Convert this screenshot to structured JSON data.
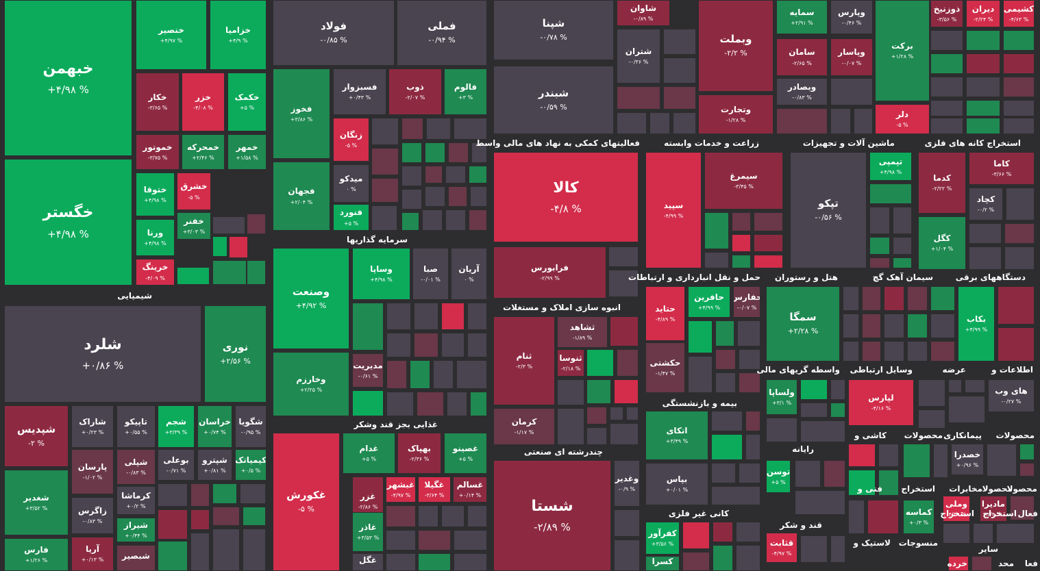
{
  "colors": {
    "g1": "#0cab5c",
    "g2": "#1f8a52",
    "g3": "#2e6a47",
    "n": "#4a4450",
    "r3": "#6a3848",
    "r2": "#8d2a41",
    "r1": "#d32d4b"
  },
  "sections": [
    {
      "label": "شیمیایی"
    },
    {
      "label": "سرمایه گذاریها"
    },
    {
      "label": "غذایی بجز قند وشکر"
    },
    {
      "label": "فعالیتهای کمکی به نهاد های مالی واسط"
    },
    {
      "label": "انبوه سازی املاک و مستغلات"
    },
    {
      "label": "چندرشته ای صنعتی"
    },
    {
      "label": "زراعت و خدمات وابسته"
    },
    {
      "label": "حمل و نقل انبارداری و ارتباطات"
    },
    {
      "label": "بیمه و بازنشستگی"
    },
    {
      "label": "کانی غیر فلزی"
    },
    {
      "label": "ماشین آلات و تجهیزات"
    },
    {
      "label": "هتل و رستوران"
    },
    {
      "label": "وسایل ارتباطی"
    },
    {
      "label": "واسطه گریهای مالی"
    },
    {
      "label": "رایانه"
    },
    {
      "label": "قند و شکر"
    },
    {
      "label": "استخراج کانه های فلزی"
    },
    {
      "label": "سیمان آهک گچ"
    },
    {
      "label": "دستگاههای برقی"
    },
    {
      "label": "اطلاعات و"
    },
    {
      "label": "عرضه"
    },
    {
      "label": "محصولات"
    },
    {
      "label": "پیمانکاری"
    },
    {
      "label": "محصولات"
    },
    {
      "label": "کاشی و"
    },
    {
      "label": "محصولا"
    },
    {
      "label": "محصولا"
    },
    {
      "label": "مخابرات"
    },
    {
      "label": "استخراج"
    },
    {
      "label": "فنی و"
    },
    {
      "label": "فعال"
    },
    {
      "label": "استخراج"
    },
    {
      "label": "استخراج"
    },
    {
      "label": "منسوجات"
    },
    {
      "label": "لاستیک و"
    },
    {
      "label": "فعا"
    },
    {
      "label": "محد"
    },
    {
      "label": "سایر"
    },
    {
      "label": "خرده"
    }
  ],
  "tiles": [
    {
      "name": "خبهمن",
      "pct": "+۴/۹۸ %"
    },
    {
      "name": "خگستر",
      "pct": "+۴/۹۸ %"
    },
    {
      "name": "خنصیر",
      "pct": "+۴/۹۷ %"
    },
    {
      "name": "خزامیا",
      "pct": "+۴/۹ %"
    },
    {
      "name": "خکار",
      "pct": "-۳/۶۵ %"
    },
    {
      "name": "خزر",
      "pct": "-۴/۰۸ %"
    },
    {
      "name": "خکمک",
      "pct": "+۵ %"
    },
    {
      "name": "خموتور",
      "pct": "-۳/۷۵ %"
    },
    {
      "name": "خمحرکه",
      "pct": "+۲/۴۶ %"
    },
    {
      "name": "خمهر",
      "pct": "+۱/۵۸ %"
    },
    {
      "name": "ختوقا",
      "pct": "+۴/۹۸ %"
    },
    {
      "name": "خشرق",
      "pct": "-۵ %"
    },
    {
      "name": "خفنر",
      "pct": "+۳/۰۳ %"
    },
    {
      "name": "ورنا",
      "pct": "+۴/۹۸ %"
    },
    {
      "name": "خرینگ",
      "pct": "-۴/۰۹ %"
    },
    {
      "name": "شلرد",
      "pct": "+۰/۸۶ %"
    },
    {
      "name": "نوری",
      "pct": "+۲/۵۶ %"
    },
    {
      "name": "شپدیس",
      "pct": "-۲ %"
    },
    {
      "name": "شاراک",
      "pct": "+۰/۲۳ %"
    },
    {
      "name": "تاپیکو",
      "pct": "+۰/۵۵ %"
    },
    {
      "name": "شجم",
      "pct": "+۳/۳۹ %"
    },
    {
      "name": "خراسان",
      "pct": "+۰/۷۴ %"
    },
    {
      "name": "شگویا",
      "pct": "-۰/۹۵ %"
    },
    {
      "name": "شغدیر",
      "pct": "+۳/۵۲ %"
    },
    {
      "name": "پارسان",
      "pct": "-۱/۰۲ %"
    },
    {
      "name": "شپلی",
      "pct": "-۰/۸۳ %"
    },
    {
      "name": "بوعلی",
      "pct": "-۰/۷۱ %"
    },
    {
      "name": "شپترو",
      "pct": "+۰/۸۱ %"
    },
    {
      "name": "کیمیاتک",
      "pct": "+۰/۵ %"
    },
    {
      "name": "کرماشا",
      "pct": "+۰/۲ %"
    },
    {
      "name": "زاگرس",
      "pct": "-۰/۸۳ %"
    },
    {
      "name": "شیراز",
      "pct": "+۰/۴۴ %"
    },
    {
      "name": "فارس",
      "pct": "+۱/۲۶ %"
    },
    {
      "name": "آریا",
      "pct": "+۰/۱۳ %"
    },
    {
      "name": "شبصیر",
      "pct": ""
    },
    {
      "name": "فولاد",
      "pct": "-۰/۸۵ %"
    },
    {
      "name": "فملی",
      "pct": "-۰/۹۴ %"
    },
    {
      "name": "فخوز",
      "pct": "+۳/۸۶ %"
    },
    {
      "name": "فسبزوار",
      "pct": "+۰/۴۳ %"
    },
    {
      "name": "ذوب",
      "pct": "-۲/۰۷ %"
    },
    {
      "name": "فالوم",
      "pct": "+۳ %"
    },
    {
      "name": "زنگان",
      "pct": "-۵ %"
    },
    {
      "name": "فجهان",
      "pct": "+۲/۰۴ %"
    },
    {
      "name": "میدکو",
      "pct": "۰ %"
    },
    {
      "name": "فنورد",
      "pct": "+۵ %"
    },
    {
      "name": "وصنعت",
      "pct": "+۴/۹۲ %"
    },
    {
      "name": "وساپا",
      "pct": "+۴/۹۸ %"
    },
    {
      "name": "صبا",
      "pct": "-۰/۰۱ %"
    },
    {
      "name": "آریان",
      "pct": "۰ %"
    },
    {
      "name": "وخارزم",
      "pct": "+۲/۲۵ %"
    },
    {
      "name": "مدیریت",
      "pct": "-۰/۶۱ %"
    },
    {
      "name": "غکورش",
      "pct": "-۵ %"
    },
    {
      "name": "غدام",
      "pct": "+۵ %"
    },
    {
      "name": "بهپاک",
      "pct": "-۲/۳۶ %"
    },
    {
      "name": "غصینو",
      "pct": "+۵ %"
    },
    {
      "name": "غزر",
      "pct": "-۲/۸۶ %"
    },
    {
      "name": "غبشهر",
      "pct": "-۴/۹۷ %"
    },
    {
      "name": "غگیلا",
      "pct": "-۳/۶۴ %"
    },
    {
      "name": "غسالم",
      "pct": "+۰/۱۴ %"
    },
    {
      "name": "غاذر",
      "pct": "+۳/۵۳ %"
    },
    {
      "name": "غگل",
      "pct": ""
    },
    {
      "name": "شپنا",
      "pct": "-۰/۷۸ %"
    },
    {
      "name": "شبندر",
      "pct": "-۰/۵۹ %"
    },
    {
      "name": "شاوان",
      "pct": "-۰/۸۹ %"
    },
    {
      "name": "شتران",
      "pct": "-۰/۳۶ %"
    },
    {
      "name": "وبملت",
      "pct": "-۲/۲ %"
    },
    {
      "name": "وتجارت",
      "pct": "-۱/۲۸ %"
    },
    {
      "name": "کالا",
      "pct": "-۴/۸ %"
    },
    {
      "name": "فرابورس",
      "pct": "-۲/۹۹ %"
    },
    {
      "name": "سپید",
      "pct": "-۴/۹۹ %"
    },
    {
      "name": "سیمرغ",
      "pct": "-۳/۴۵ %"
    },
    {
      "name": "ثنام",
      "pct": "-۲/۳ %"
    },
    {
      "name": "ثشاهد",
      "pct": "-۱/۸۹ %"
    },
    {
      "name": "ثنوسا",
      "pct": "-۲/۱۸ %"
    },
    {
      "name": "کرمان",
      "pct": "-۱/۱۷ %"
    },
    {
      "name": "حتاید",
      "pct": "-۴/۸۹ %"
    },
    {
      "name": "حافرین",
      "pct": "+۴/۹۹ %"
    },
    {
      "name": "حفارس",
      "pct": "-۰/۰۷ %"
    },
    {
      "name": "حکشتی",
      "pct": "-۱/۴۷ %"
    },
    {
      "name": "شستا",
      "pct": "-۲/۸۹ %"
    },
    {
      "name": "وغدیر",
      "pct": "-۰/۹ %"
    },
    {
      "name": "اتکای",
      "pct": "+۳/۴۹ %"
    },
    {
      "name": "بپاس",
      "pct": "+۰/۰۱ %"
    },
    {
      "name": "کفرآور",
      "pct": "+۳/۵۶ %"
    },
    {
      "name": "کسرا",
      "pct": ""
    },
    {
      "name": "سمایه",
      "pct": "+۲/۹۱ %"
    },
    {
      "name": "وپارس",
      "pct": "-۰/۴۶ %"
    },
    {
      "name": "سامان",
      "pct": "-۲/۶۵ %"
    },
    {
      "name": "وپاسار",
      "pct": "-۰/۰۷ %"
    },
    {
      "name": "وبصادر",
      "pct": "-۰/۸۳ %"
    },
    {
      "name": "برکت",
      "pct": "+۱/۲۸ %"
    },
    {
      "name": "دلر",
      "pct": "-۵ %"
    },
    {
      "name": "تپکو",
      "pct": "-۰/۵۶ %"
    },
    {
      "name": "تپمپی",
      "pct": "+۴/۹۸ %"
    },
    {
      "name": "کدما",
      "pct": "-۲/۲۲ %"
    },
    {
      "name": "کاما",
      "pct": "-۳/۶۶ %"
    },
    {
      "name": "کچاد",
      "pct": "-۰/۲ %"
    },
    {
      "name": "کگل",
      "pct": "+۱/۰۴ %"
    },
    {
      "name": "سمگا",
      "pct": "+۲/۲۸ %"
    },
    {
      "name": "بکاب",
      "pct": "+۴/۹۹ %"
    },
    {
      "name": "ولساپا",
      "pct": "+۳/۱ %"
    },
    {
      "name": "لپارس",
      "pct": "-۴/۱۶ %"
    },
    {
      "name": "های وب",
      "pct": "-۰/۲۷ %"
    },
    {
      "name": "توسن",
      "pct": "+۵ %"
    },
    {
      "name": "خصدرا",
      "pct": "+۰/۹۶ %"
    },
    {
      "name": "کماسه",
      "pct": "+۰/۳ %"
    },
    {
      "name": "وملی",
      "pct": "-۴/۲۹ %"
    },
    {
      "name": "مادیرا",
      "pct": "-۳/۴ %"
    },
    {
      "name": "قثابت",
      "pct": "-۴/۹۷ %"
    },
    {
      "name": "ذوزنیخ",
      "pct": "-۳/۵۶ %"
    },
    {
      "name": "دیران",
      "pct": "-۲/۲۴ %"
    },
    {
      "name": "کشیمی",
      "pct": "-۴/۶۳ %"
    }
  ]
}
